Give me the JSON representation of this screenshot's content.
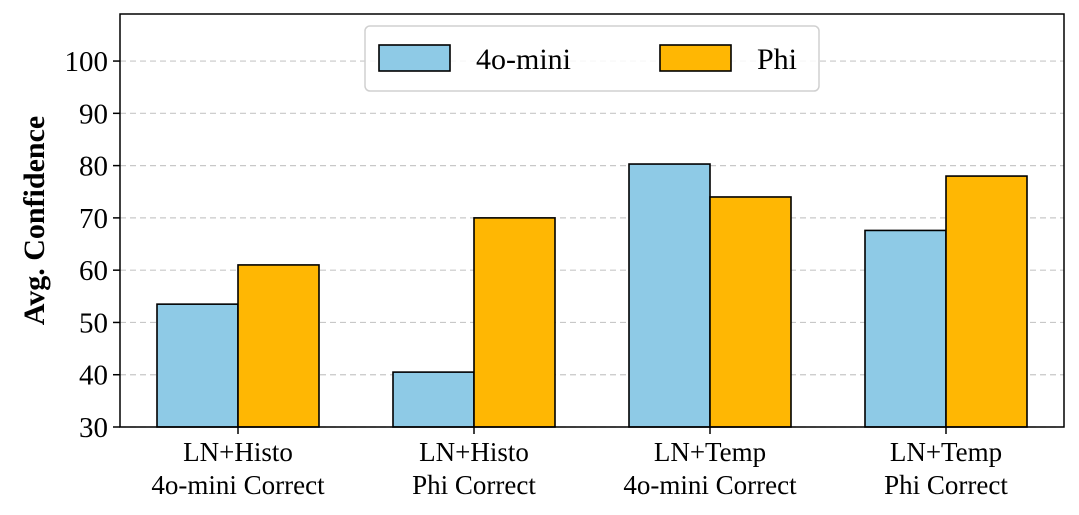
{
  "chart_data": {
    "type": "bar",
    "title": "",
    "xlabel": "",
    "ylabel": "Avg. Confidence",
    "ylim": [
      30,
      109
    ],
    "yticks": [
      30,
      40,
      50,
      60,
      70,
      80,
      90,
      100
    ],
    "grid": true,
    "legend_position": "top-center",
    "categories": [
      [
        "LN+Histo",
        "4o-mini Correct"
      ],
      [
        "LN+Histo",
        "Phi Correct"
      ],
      [
        "LN+Temp",
        "4o-mini Correct"
      ],
      [
        "LN+Temp",
        "Phi Correct"
      ]
    ],
    "series": [
      {
        "name": "4o-mini",
        "color": "#8ecae6",
        "values": [
          53.5,
          40.5,
          80.3,
          67.6
        ]
      },
      {
        "name": "Phi",
        "color": "#ffb703",
        "values": [
          61.0,
          70.0,
          74.0,
          78.0
        ]
      }
    ]
  }
}
